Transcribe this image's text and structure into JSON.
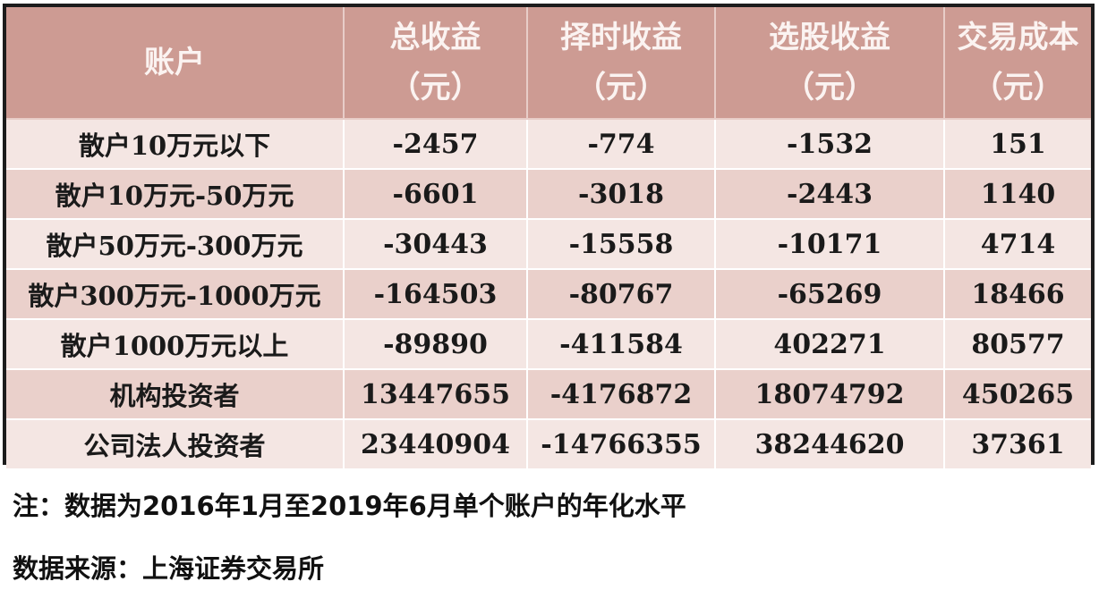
{
  "table": {
    "headers": [
      {
        "line1": "账户",
        "line2": ""
      },
      {
        "line1": "总收益",
        "line2": "（元）"
      },
      {
        "line1": "择时收益",
        "line2": "（元）"
      },
      {
        "line1": "选股收益",
        "line2": "（元）"
      },
      {
        "line1": "交易成本",
        "line2": "（元）"
      }
    ],
    "rows": [
      {
        "account": "散户10万元以下",
        "total": "-2457",
        "timing": "-774",
        "selection": "-1532",
        "cost": "151"
      },
      {
        "account": "散户10万元-50万元",
        "total": "-6601",
        "timing": "-3018",
        "selection": "-2443",
        "cost": "1140"
      },
      {
        "account": "散户50万元-300万元",
        "total": "-30443",
        "timing": "-15558",
        "selection": "-10171",
        "cost": "4714"
      },
      {
        "account": "散户300万元-1000万元",
        "total": "-164503",
        "timing": "-80767",
        "selection": "-65269",
        "cost": "18466"
      },
      {
        "account": "散户1000万元以上",
        "total": "-89890",
        "timing": "-411584",
        "selection": "402271",
        "cost": "80577"
      },
      {
        "account": "机构投资者",
        "total": "13447655",
        "timing": "-4176872",
        "selection": "18074792",
        "cost": "450265"
      },
      {
        "account": "公司法人投资者",
        "total": "23440904",
        "timing": "-14766355",
        "selection": "38244620",
        "cost": "37361"
      }
    ]
  },
  "notes": {
    "note": "注：数据为2016年1月至2019年6月单个账户的年化水平",
    "source": "数据来源：上海证券交易所"
  },
  "colors": {
    "header_bg": "#cd9b93",
    "header_text": "#fbf3f1",
    "row_light": "#f4e6e3",
    "row_dark": "#ead0cb",
    "frame": "#1c1c1c"
  }
}
